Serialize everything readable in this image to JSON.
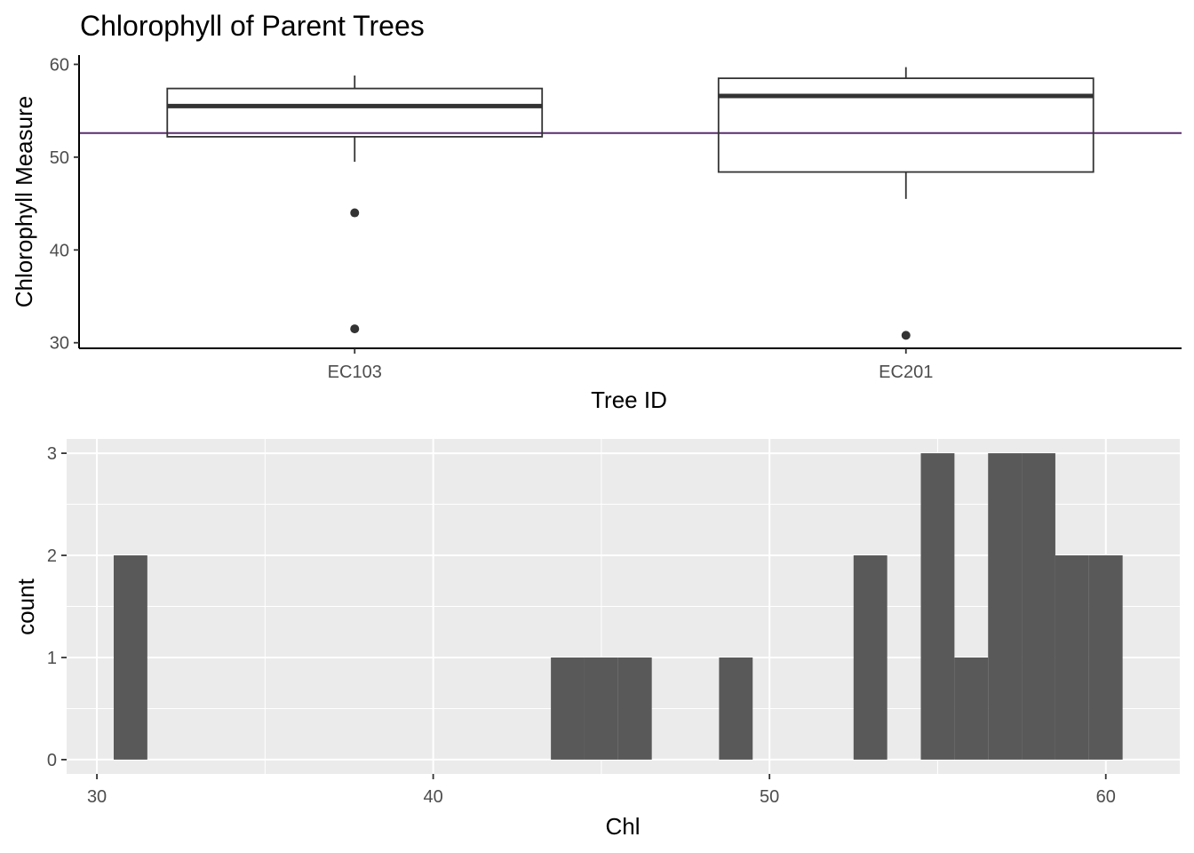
{
  "chart_data": [
    {
      "type": "box",
      "title": "Chlorophyll of Parent Trees",
      "xlabel": "Tree ID",
      "ylabel": "Chlorophyll Measure",
      "categories": [
        "EC103",
        "EC201"
      ],
      "yticks": [
        30,
        40,
        50,
        60
      ],
      "ylim": [
        29.4,
        61.0
      ],
      "boxes": [
        {
          "category": "EC103",
          "whisker_low": 49.5,
          "q1": 52.2,
          "median": 55.5,
          "q3": 57.4,
          "whisker_high": 58.8,
          "outliers": [
            44.0,
            31.5
          ]
        },
        {
          "category": "EC201",
          "whisker_low": 45.5,
          "q1": 48.4,
          "median": 56.6,
          "q3": 58.5,
          "whisker_high": 59.7,
          "outliers": [
            30.8
          ]
        }
      ],
      "hline": {
        "y": 52.6,
        "color": "#5b2c6f"
      },
      "theme": "classic",
      "grid": false,
      "legend": "none"
    },
    {
      "type": "histogram",
      "title": "",
      "xlabel": "Chl",
      "ylabel": "count",
      "xticks": [
        30,
        40,
        50,
        60
      ],
      "yticks": [
        0,
        1,
        2,
        3
      ],
      "xlim": [
        29.1,
        62.2
      ],
      "ylim": [
        -0.14,
        3.14
      ],
      "bin_width": 1.0,
      "bins": [
        {
          "x0": 30.5,
          "x1": 31.5,
          "count": 2
        },
        {
          "x0": 43.5,
          "x1": 44.5,
          "count": 1
        },
        {
          "x0": 44.5,
          "x1": 45.5,
          "count": 1
        },
        {
          "x0": 45.5,
          "x1": 46.5,
          "count": 1
        },
        {
          "x0": 48.5,
          "x1": 49.5,
          "count": 1
        },
        {
          "x0": 52.5,
          "x1": 53.5,
          "count": 2
        },
        {
          "x0": 54.5,
          "x1": 55.5,
          "count": 3
        },
        {
          "x0": 55.5,
          "x1": 56.5,
          "count": 1
        },
        {
          "x0": 56.5,
          "x1": 57.5,
          "count": 3
        },
        {
          "x0": 57.5,
          "x1": 58.5,
          "count": 3
        },
        {
          "x0": 58.5,
          "x1": 59.5,
          "count": 2
        },
        {
          "x0": 59.5,
          "x1": 60.5,
          "count": 2
        }
      ],
      "bar_color": "#595959",
      "theme": "gray",
      "grid": true,
      "legend": "none"
    }
  ]
}
